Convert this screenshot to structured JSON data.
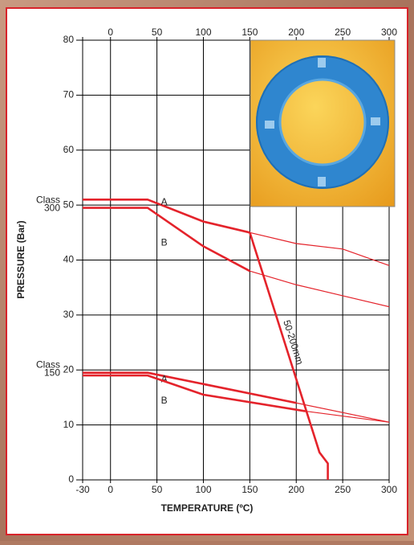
{
  "chart_data": {
    "type": "line",
    "x_label": "TEMPERATURE (ºC)",
    "y_label": "PRESSURE (Bar)",
    "xlim": [
      -30,
      300
    ],
    "xticks": [
      -30,
      0,
      50,
      100,
      150,
      200,
      250,
      300
    ],
    "top_xticks": [
      0,
      50,
      100,
      150,
      200,
      250,
      300
    ],
    "ylim": [
      0,
      80
    ],
    "yticks": [
      0,
      10,
      20,
      30,
      40,
      50,
      60,
      70,
      80
    ],
    "grid": true,
    "class_labels": [
      {
        "lines": [
          "Class",
          "300"
        ],
        "y": 50
      },
      {
        "lines": [
          "Class",
          "150"
        ],
        "y": 20
      }
    ],
    "series": [
      {
        "name": "A",
        "color": "#e4232b",
        "style": "thick",
        "x": [
          -30,
          40,
          100,
          150
        ],
        "values": [
          51,
          51,
          47,
          45
        ]
      },
      {
        "color": "#e4232b",
        "style": "thin",
        "x": [
          150,
          200,
          250,
          300
        ],
        "values": [
          45,
          43,
          42,
          39
        ]
      },
      {
        "name": "B",
        "color": "#e4232b",
        "style": "thick",
        "x": [
          -30,
          40,
          100,
          150
        ],
        "values": [
          49.5,
          49.5,
          42.5,
          38
        ]
      },
      {
        "color": "#e4232b",
        "style": "thin",
        "x": [
          150,
          200,
          250,
          300
        ],
        "values": [
          38,
          35.5,
          33.5,
          31.5
        ]
      },
      {
        "name": "A",
        "color": "#e4232b",
        "style": "thick",
        "x": [
          -30,
          40,
          200
        ],
        "values": [
          19.5,
          19.5,
          14
        ]
      },
      {
        "color": "#e4232b",
        "style": "thin",
        "x": [
          200,
          300
        ],
        "values": [
          14,
          10.5
        ]
      },
      {
        "name": "B",
        "color": "#e4232b",
        "style": "thick",
        "x": [
          -30,
          40,
          100,
          210
        ],
        "values": [
          19,
          19,
          15.5,
          12.5
        ]
      },
      {
        "color": "#e4232b",
        "style": "thin",
        "x": [
          210,
          300
        ],
        "values": [
          12.5,
          10.5
        ]
      },
      {
        "name": "50-200mm",
        "color": "#e4232b",
        "style": "thick",
        "x": [
          150,
          225,
          234,
          234
        ],
        "values": [
          45,
          5,
          3,
          0
        ]
      }
    ]
  }
}
